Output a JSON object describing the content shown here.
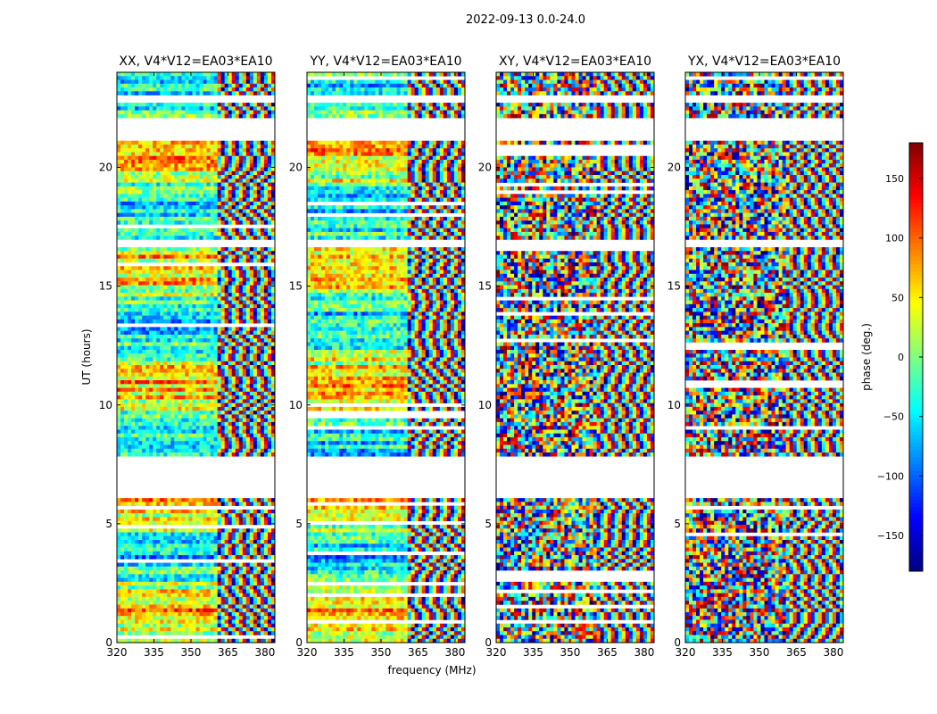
{
  "figure": {
    "suptitle": "2022-09-13 0.0-24.0",
    "xlabel": "frequency (MHz)",
    "ylabel": "UT (hours)"
  },
  "chart_data": {
    "type": "heatmap",
    "x_ticks": [
      "320",
      "335",
      "350",
      "365",
      "380"
    ],
    "x_tick_values": [
      320,
      335,
      350,
      365,
      380
    ],
    "xlim": [
      320,
      384
    ],
    "y_ticks": [
      "0",
      "5",
      "10",
      "15",
      "20"
    ],
    "y_tick_values": [
      0,
      5,
      10,
      15,
      20
    ],
    "ylim": [
      0,
      24
    ],
    "panels": [
      {
        "title": "XX, V4*V12=EA03*EA10",
        "kind": "parallel"
      },
      {
        "title": "YY, V4*V12=EA03*EA10",
        "kind": "parallel"
      },
      {
        "title": "XY, V4*V12=EA03*EA10",
        "kind": "cross"
      },
      {
        "title": "YX, V4*V12=EA03*EA10",
        "kind": "cross"
      }
    ],
    "blank_ut_ranges": [
      [
        6.1,
        7.9
      ],
      [
        21.2,
        22.0
      ],
      [
        16.7,
        17.0
      ],
      [
        22.8,
        23.0
      ]
    ],
    "colorbar": {
      "label": "phase (deg.)",
      "range": [
        -180,
        180
      ],
      "ticks": [
        "150",
        "100",
        "50",
        "0",
        "−50",
        "−100",
        "−150"
      ],
      "tick_values": [
        150,
        100,
        50,
        0,
        -50,
        -100,
        -150
      ],
      "colormap": "jet"
    }
  }
}
